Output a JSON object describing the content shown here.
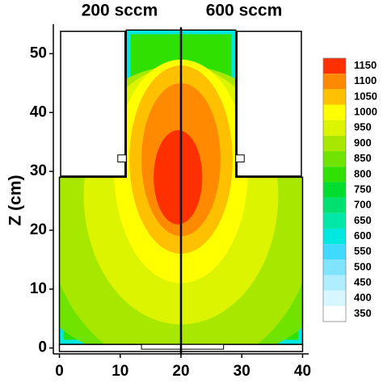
{
  "chart_data": {
    "type": "contour",
    "panel_titles": [
      "200 sccm",
      "600 sccm"
    ],
    "ylabel": "Z (cm)",
    "xlim": [
      -1,
      41
    ],
    "ylim": [
      -1,
      55
    ],
    "xticks": [
      0,
      10,
      20,
      30,
      40
    ],
    "yticks": [
      0,
      10,
      20,
      30,
      40,
      50
    ],
    "levels": [
      350,
      400,
      450,
      500,
      550,
      600,
      650,
      700,
      750,
      800,
      850,
      900,
      950,
      1000,
      1050,
      1100,
      1150
    ],
    "colors": [
      "#ffffff",
      "#d8f6ff",
      "#b0eeff",
      "#80e4ff",
      "#40daff",
      "#00e8e0",
      "#00e8a8",
      "#00e070",
      "#00dc30",
      "#30e000",
      "#70e400",
      "#a8e800",
      "#dcf400",
      "#ffff00",
      "#ffc000",
      "#ff8a00",
      "#ff3000"
    ]
  }
}
